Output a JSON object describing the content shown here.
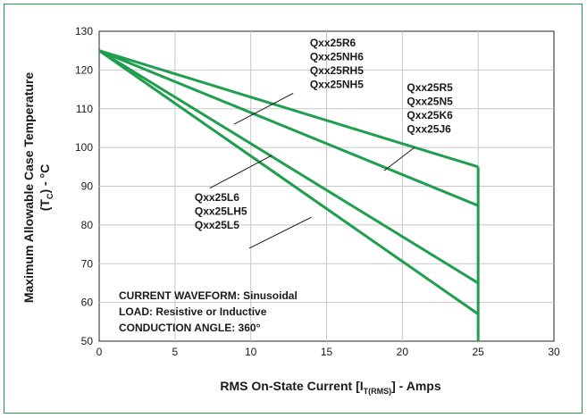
{
  "chart_data": {
    "type": "line",
    "xlabel_main": "RMS On-State Current [I",
    "xlabel_sub": "T(RMS)",
    "xlabel_end": "] - Amps",
    "ylabel_main": "Maximum Allowable Case Temperature",
    "ylabel_unit_open": "(T",
    "ylabel_unit_sub": "C",
    "ylabel_unit_close": ") - °C",
    "xlim": [
      0,
      30
    ],
    "ylim": [
      50,
      130
    ],
    "x_ticks": [
      0,
      5,
      10,
      15,
      20,
      25,
      30
    ],
    "y_ticks": [
      50,
      60,
      70,
      80,
      90,
      100,
      110,
      120,
      130
    ],
    "grid": true,
    "series": [
      {
        "x": [
          0,
          25
        ],
        "y": [
          125,
          95
        ]
      },
      {
        "x": [
          0,
          25
        ],
        "y": [
          125,
          85
        ]
      },
      {
        "x": [
          0,
          25
        ],
        "y": [
          125,
          65
        ]
      },
      {
        "x": [
          0,
          25
        ],
        "y": [
          125,
          57
        ]
      }
    ],
    "label_groups": [
      {
        "lines": [
          "Qxx25R6",
          "Qxx25NH6",
          "Qxx25RH5",
          "Qxx25NH5"
        ],
        "pointer": [
          [
            8.9,
            106
          ],
          [
            12.8,
            114
          ]
        ]
      },
      {
        "lines": [
          "Qxx25R5",
          "Qxx25N5",
          "Qxx25K6",
          "Qxx25J6"
        ],
        "pointer": [
          [
            18.8,
            94
          ],
          [
            20.8,
            100
          ]
        ]
      },
      {
        "lines": [
          "Qxx25L6",
          "Qxx25LH5",
          "Qxx25L5"
        ],
        "pointer": [
          [
            7.3,
            89.5
          ],
          [
            11.4,
            98
          ]
        ]
      },
      {
        "lines": [],
        "pointer": [
          [
            9.9,
            74
          ],
          [
            14,
            82
          ]
        ]
      }
    ],
    "annotations": [
      "CURRENT WAVEFORM: Sinusoidal",
      "LOAD: Resistive or Inductive",
      "CONDUCTION ANGLE: 360°"
    ],
    "colors": {
      "line": "#1f9e4e",
      "grid": "#c8c8c8",
      "frame": "#1f9e4e",
      "axis": "#222222"
    }
  }
}
